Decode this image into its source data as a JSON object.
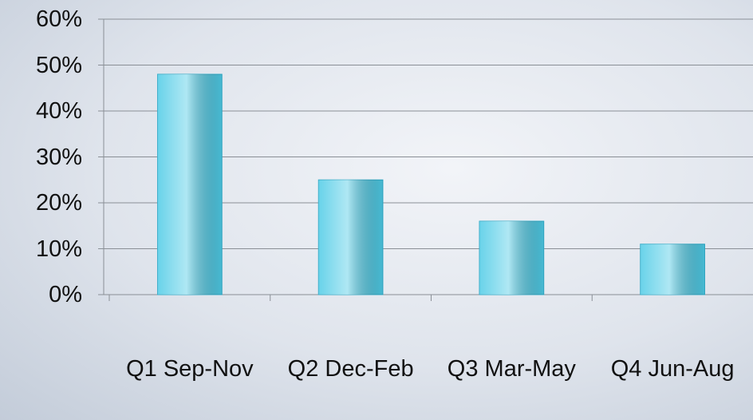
{
  "chart_data": {
    "type": "bar",
    "categories": [
      "Q1 Sep-Nov",
      "Q2 Dec-Feb",
      "Q3 Mar-May",
      "Q4 Jun-Aug"
    ],
    "values": [
      48,
      25,
      16,
      11
    ],
    "color": "#4ecbe6",
    "ylim": [
      0,
      60
    ],
    "yticks": [
      {
        "value": 0,
        "label": "0%"
      },
      {
        "value": 10,
        "label": "10%"
      },
      {
        "value": 20,
        "label": "20%"
      },
      {
        "value": 30,
        "label": "30%"
      },
      {
        "value": 40,
        "label": "40%"
      },
      {
        "value": 50,
        "label": "50%"
      },
      {
        "value": 60,
        "label": "60%"
      }
    ],
    "grid": true
  }
}
